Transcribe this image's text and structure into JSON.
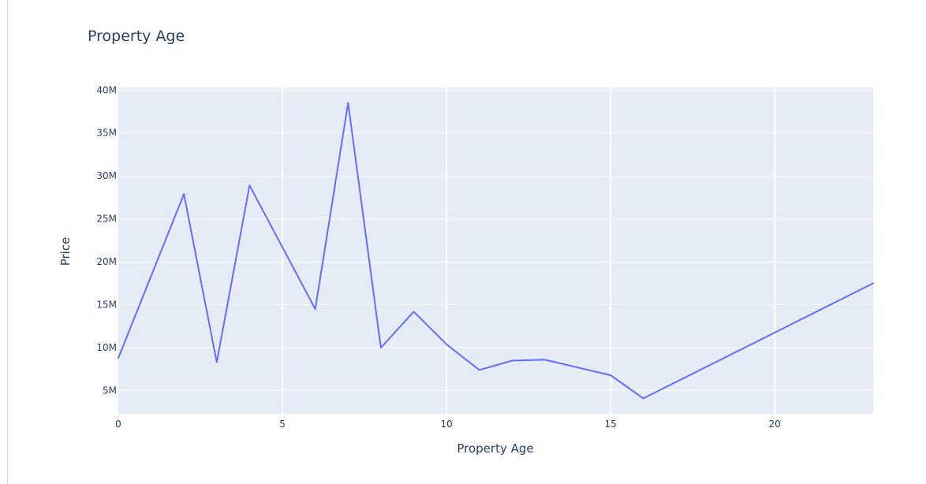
{
  "chart_data": {
    "type": "line",
    "title": "Property Age",
    "xlabel": "Property Age",
    "ylabel": "Price",
    "xlim": [
      0,
      23
    ],
    "ylim": [
      2300000,
      40300000
    ],
    "x_ticks": [
      0,
      5,
      10,
      15,
      20
    ],
    "x_tick_labels": [
      "0",
      "5",
      "10",
      "15",
      "20"
    ],
    "y_ticks": [
      5000000,
      10000000,
      15000000,
      20000000,
      25000000,
      30000000,
      35000000,
      40000000
    ],
    "y_tick_labels": [
      "5M",
      "10M",
      "15M",
      "20M",
      "25M",
      "30M",
      "35M",
      "40M"
    ],
    "grid": true,
    "legend": "none",
    "series": [
      {
        "x": [
          0,
          2,
          3,
          4,
          6,
          7,
          8,
          9,
          10,
          11,
          12,
          13,
          15,
          16,
          23
        ],
        "y": [
          8800000,
          27900000,
          8300000,
          28900000,
          14500000,
          38500000,
          10000000,
          14200000,
          10400000,
          7400000,
          8500000,
          8600000,
          6800000,
          4100000,
          17500000
        ],
        "color": "#636efa"
      }
    ],
    "plot_background": "#e5ecf6",
    "grid_color": "#ffffff",
    "text_color": "#2a3f5f"
  }
}
